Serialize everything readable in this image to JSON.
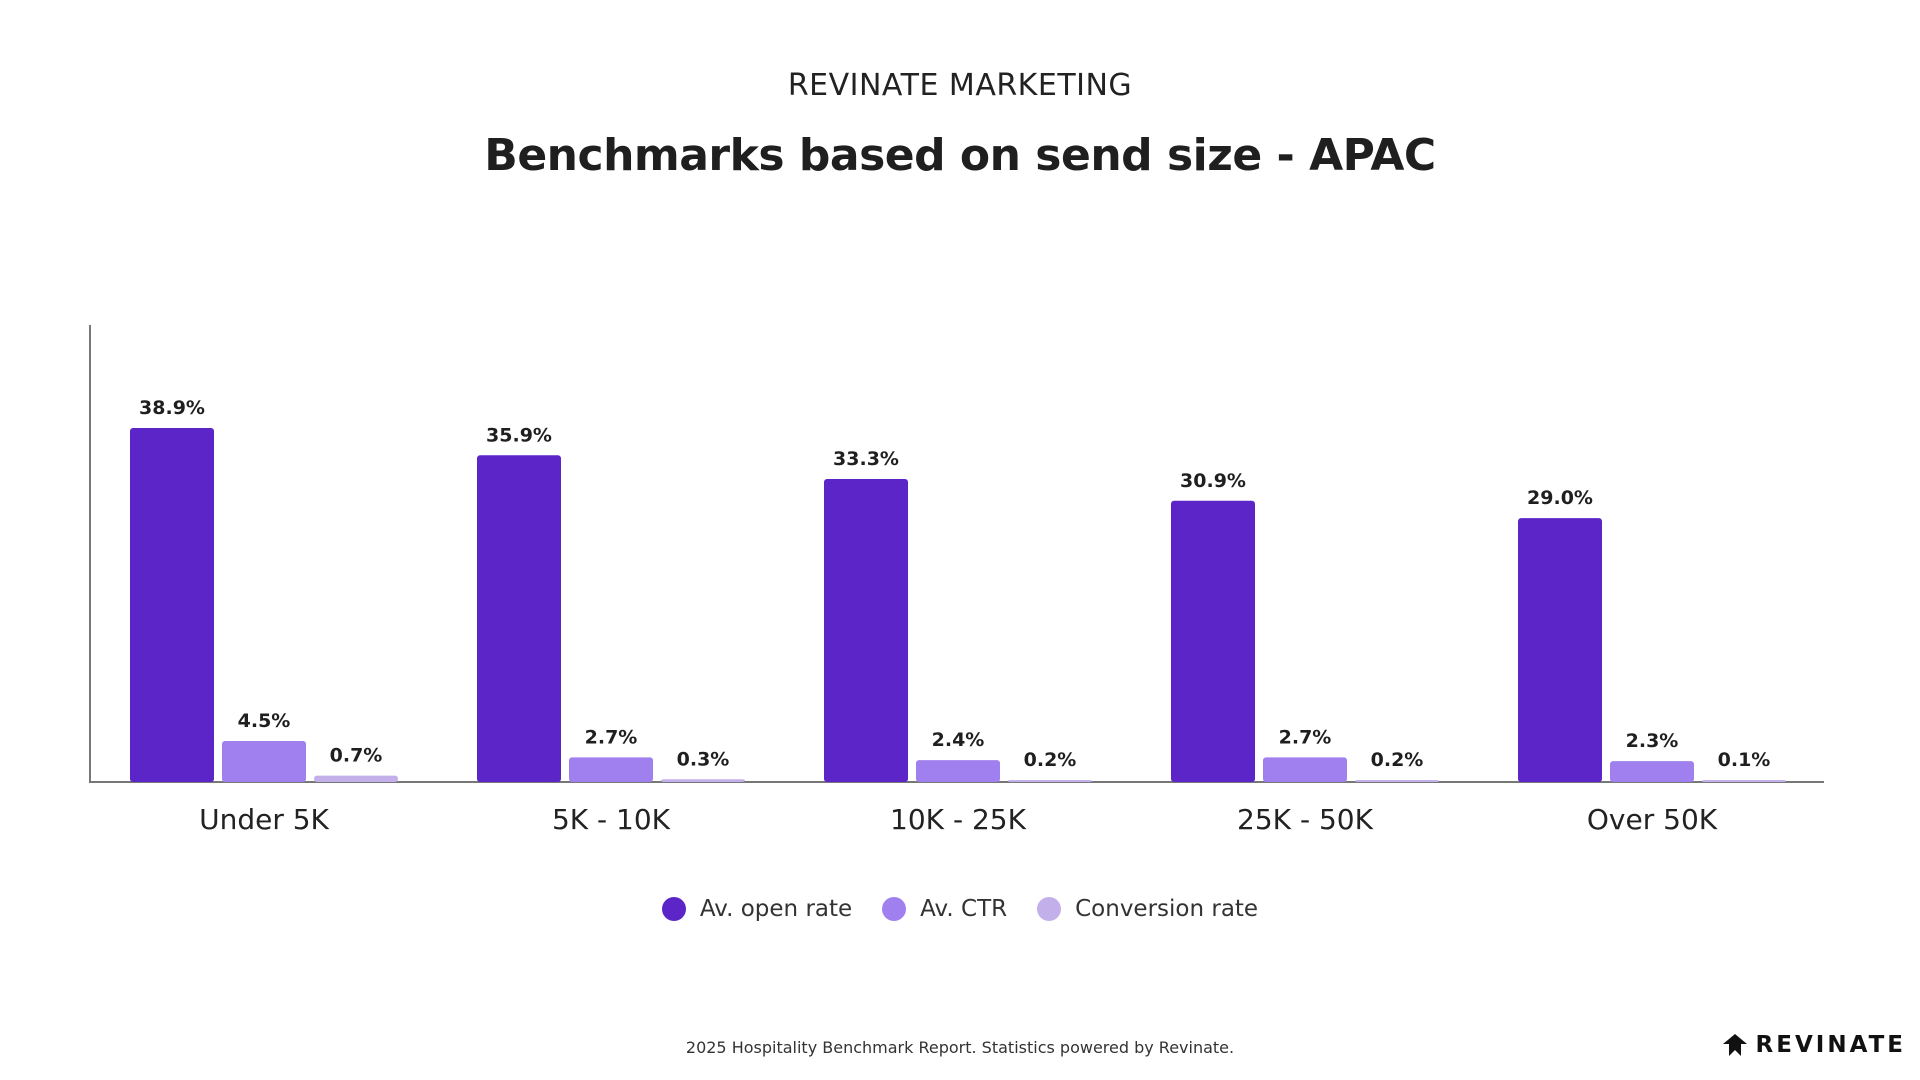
{
  "header": {
    "eyebrow": "REVINATE MARKETING",
    "title": "Benchmarks based on send size - APAC"
  },
  "chart_data": {
    "type": "bar",
    "title": "Benchmarks based on send size - APAC",
    "xlabel": "",
    "ylabel": "",
    "ylim": [
      0,
      45
    ],
    "grid": false,
    "legend_position": "bottom",
    "categories": [
      "Under 5K",
      "5K - 10K",
      "10K - 25K",
      "25K - 50K",
      "Over 50K"
    ],
    "series": [
      {
        "name": "Av. open rate",
        "color": "#5b25c8",
        "values": [
          38.9,
          35.9,
          33.3,
          30.9,
          29.0
        ],
        "labels": [
          "38.9%",
          "35.9%",
          "33.3%",
          "30.9%",
          "29.0%"
        ]
      },
      {
        "name": "Av. CTR",
        "color": "#9f80ee",
        "values": [
          4.5,
          2.7,
          2.4,
          2.7,
          2.3
        ],
        "labels": [
          "4.5%",
          "2.7%",
          "2.4%",
          "2.7%",
          "2.3%"
        ]
      },
      {
        "name": "Conversion rate",
        "color": "#c3b0ea",
        "values": [
          0.7,
          0.3,
          0.2,
          0.2,
          0.1
        ],
        "labels": [
          "0.7%",
          "0.3%",
          "0.2%",
          "0.2%",
          "0.1%"
        ]
      }
    ]
  },
  "legend": {
    "items": [
      {
        "label": "Av. open rate",
        "color": "#5b25c8"
      },
      {
        "label": "Av. CTR",
        "color": "#9f80ee"
      },
      {
        "label": "Conversion rate",
        "color": "#c3b0ea"
      }
    ]
  },
  "footer": {
    "text": "2025 Hospitality Benchmark Report. Statistics powered by Revinate."
  },
  "brand": {
    "name": "REVINATE",
    "icon": "revinate-logo-icon"
  }
}
